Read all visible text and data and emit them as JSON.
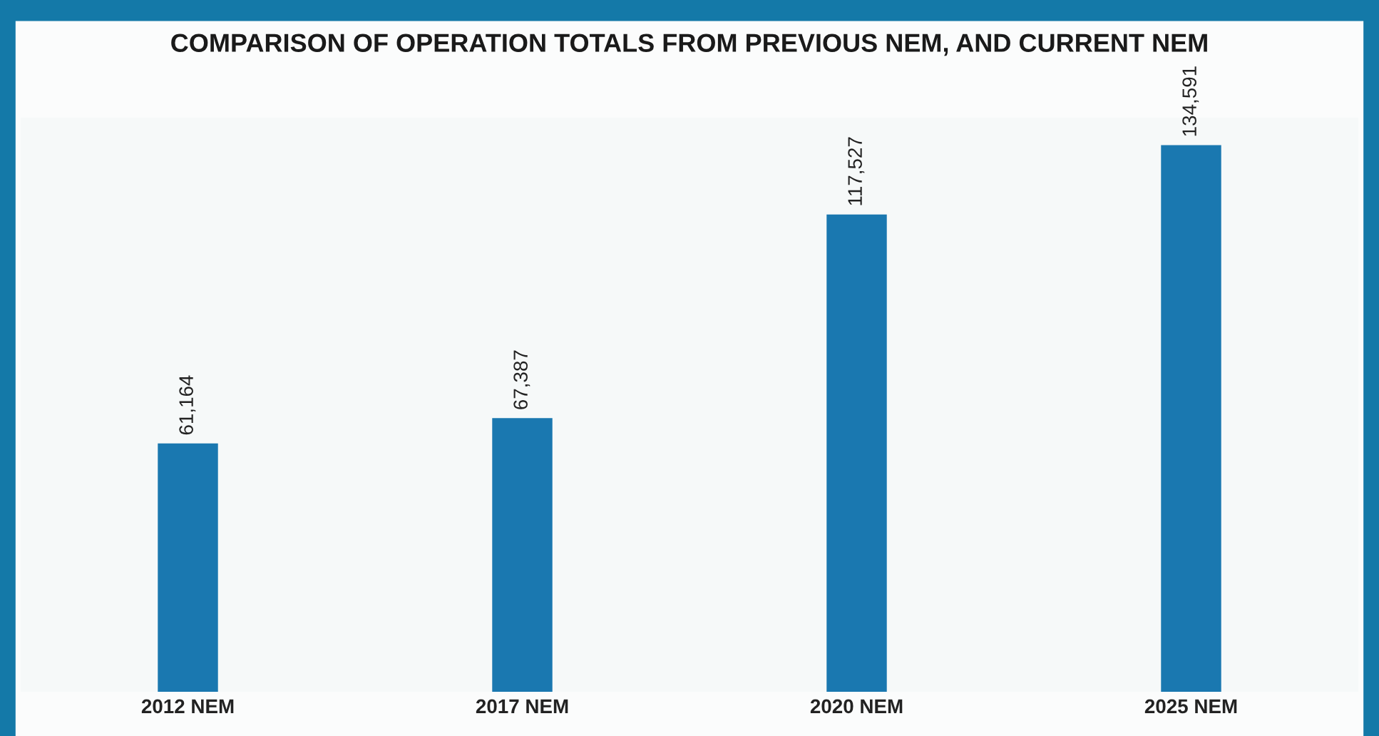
{
  "chart_data": {
    "type": "bar",
    "title": "COMPARISON OF OPERATION TOTALS FROM PREVIOUS NEM, AND CURRENT NEM",
    "categories": [
      "2012 NEM",
      "2017 NEM",
      "2020 NEM",
      "2025 NEM"
    ],
    "values": [
      61164,
      67387,
      117527,
      134591
    ],
    "color": "#1a78b0",
    "value_labels": [
      "61,164",
      "67,387",
      "117,527",
      "134,591"
    ],
    "grid": false,
    "legend": false
  }
}
